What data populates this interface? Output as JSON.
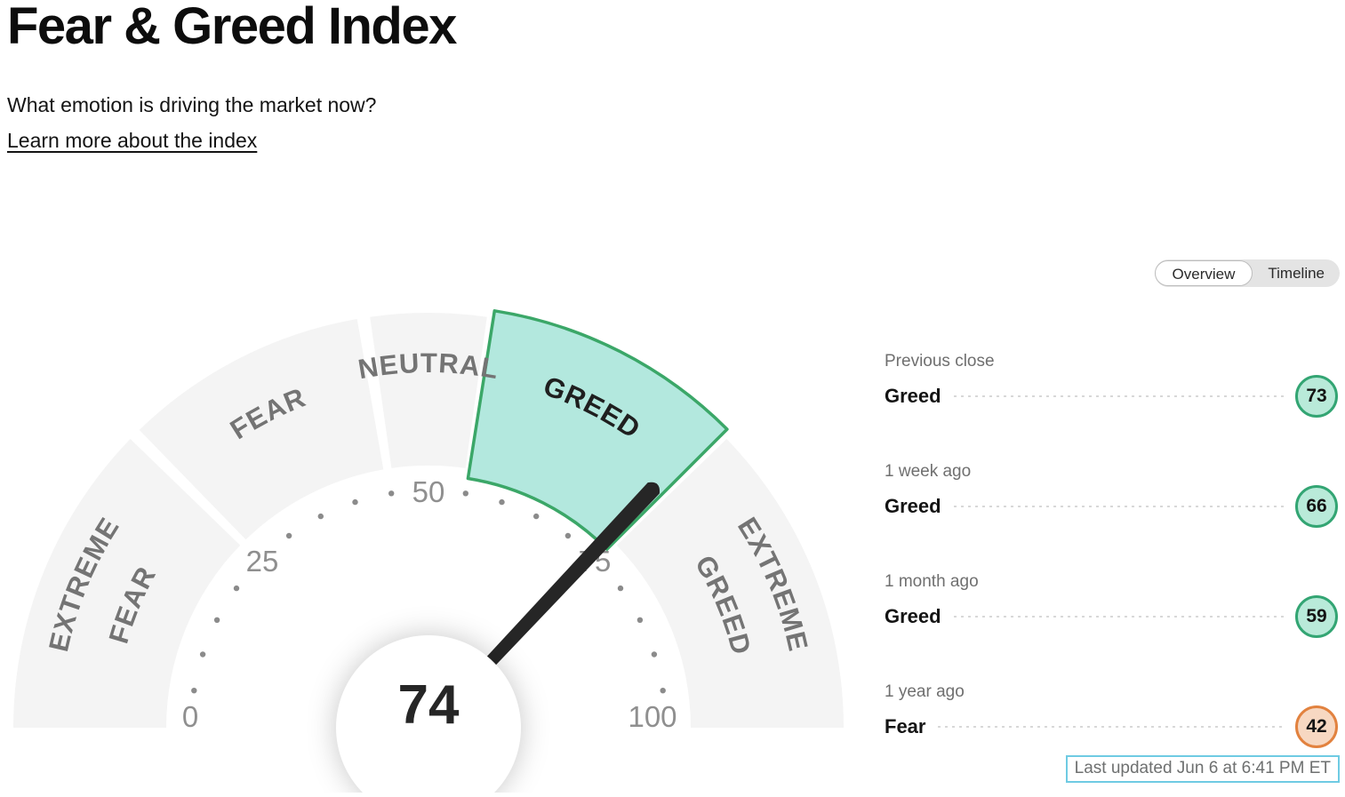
{
  "header": {
    "title": "Fear & Greed Index",
    "subtitle": "What emotion is driving the market now?",
    "link_label": "Learn more about the index"
  },
  "view_toggle": {
    "options": [
      {
        "label": "Overview",
        "selected": true
      },
      {
        "label": "Timeline",
        "selected": false
      }
    ]
  },
  "gauge": {
    "value": 74,
    "value_display": "74",
    "min": 0,
    "max": 100,
    "ticks": [
      "0",
      "25",
      "50",
      "75",
      "100"
    ],
    "segments": [
      {
        "name": "extreme-fear",
        "label": "EXTREME FEAR",
        "lines": [
          "EXTREME",
          "FEAR"
        ],
        "range": [
          0,
          25
        ],
        "selected": false
      },
      {
        "name": "fear",
        "label": "FEAR",
        "lines": [
          "FEAR"
        ],
        "range": [
          25,
          45
        ],
        "selected": false
      },
      {
        "name": "neutral",
        "label": "NEUTRAL",
        "lines": [
          "NEUTRAL"
        ],
        "range": [
          45,
          55
        ],
        "selected": false
      },
      {
        "name": "greed",
        "label": "GREED",
        "lines": [
          "GREED"
        ],
        "range": [
          55,
          75
        ],
        "selected": true
      },
      {
        "name": "extreme-greed",
        "label": "EXTREME GREED",
        "lines": [
          "EXTREME",
          "GREED"
        ],
        "range": [
          75,
          100
        ],
        "selected": false
      }
    ]
  },
  "history": [
    {
      "period": "Previous close",
      "sentiment": "Greed",
      "value": "73",
      "tone": "greed"
    },
    {
      "period": "1 week ago",
      "sentiment": "Greed",
      "value": "66",
      "tone": "greed"
    },
    {
      "period": "1 month ago",
      "sentiment": "Greed",
      "value": "59",
      "tone": "greed"
    },
    {
      "period": "1 year ago",
      "sentiment": "Fear",
      "value": "42",
      "tone": "fear"
    }
  ],
  "status": {
    "last_updated": "Last updated Jun 6 at 6:41 PM ET"
  },
  "colors": {
    "segment_fill": "#f4f4f4",
    "selected_segment_fill": "#b3e8de",
    "selected_segment_stroke": "#3ba768",
    "needle": "#262626",
    "badge_greed_fill": "#b9ead9",
    "badge_greed_border": "#33a573",
    "badge_fear_fill": "#f7d8c2",
    "badge_fear_border": "#e2823f",
    "updated_border": "#6fcbe3",
    "dial_text": "#8f8f8f"
  },
  "chart_data": {
    "type": "gauge",
    "title": "Fear & Greed Index",
    "value": 74,
    "min": 0,
    "max": 100,
    "tick_labels": [
      0,
      25,
      50,
      75,
      100
    ],
    "segments": [
      {
        "label": "EXTREME FEAR",
        "range": [
          0,
          25
        ],
        "selected": false
      },
      {
        "label": "FEAR",
        "range": [
          25,
          45
        ],
        "selected": false
      },
      {
        "label": "NEUTRAL",
        "range": [
          45,
          55
        ],
        "selected": false
      },
      {
        "label": "GREED",
        "range": [
          55,
          75
        ],
        "selected": true
      },
      {
        "label": "EXTREME GREED",
        "range": [
          75,
          100
        ],
        "selected": false
      }
    ],
    "current_sentiment": "Greed",
    "history": [
      {
        "period": "Previous close",
        "sentiment": "Greed",
        "value": 73
      },
      {
        "period": "1 week ago",
        "sentiment": "Greed",
        "value": 66
      },
      {
        "period": "1 month ago",
        "sentiment": "Greed",
        "value": 59
      },
      {
        "period": "1 year ago",
        "sentiment": "Fear",
        "value": 42
      }
    ],
    "last_updated": "Last updated Jun 6 at 6:41 PM ET"
  }
}
